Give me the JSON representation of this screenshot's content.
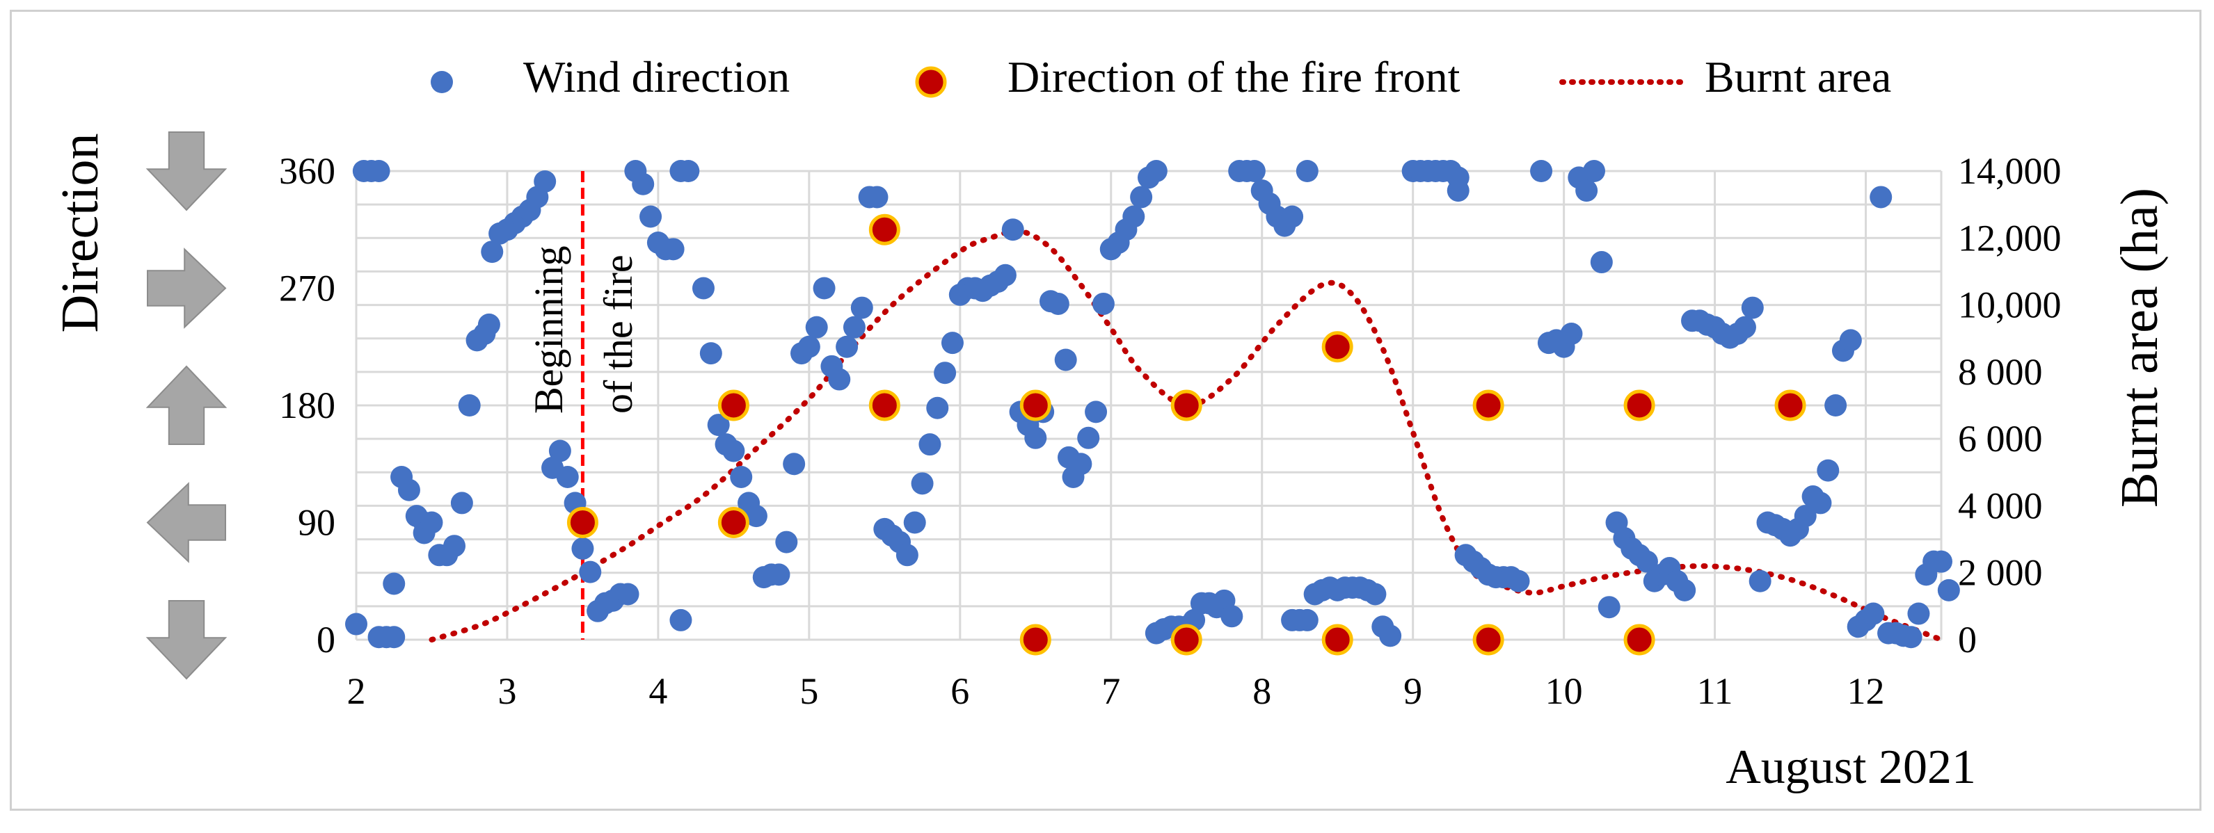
{
  "chart_data": {
    "type": "scatter",
    "title": "",
    "xlabel": "August 2021",
    "ylabel_left": "Direction",
    "ylabel_right": "Burnt area (ha)",
    "xlim": [
      2,
      12.5
    ],
    "ylim_left": [
      0,
      360
    ],
    "ylim_right": [
      0,
      14000
    ],
    "x_ticks": [
      "2",
      "3",
      "4",
      "5",
      "6",
      "7",
      "8",
      "9",
      "10",
      "11",
      "12"
    ],
    "y_ticks_left": [
      "0",
      "90",
      "180",
      "270",
      "360"
    ],
    "y_ticks_right": [
      "0",
      "2 000",
      "4 000",
      "6 000",
      "8 000",
      "10,000",
      "12,000",
      "14,000"
    ],
    "grid": true,
    "legend_position": "top",
    "legend": [
      "Wind direction",
      "Direction of the fire front",
      "Burnt area"
    ],
    "colors": {
      "wind": "#4472C4",
      "fire_fill": "#C00000",
      "fire_edge": "#FFC000",
      "burnt": "#C00000",
      "start_line": "#FF0000",
      "arrow": "#A6A6A6",
      "grid": "#D9D9D9"
    },
    "annotation": [
      "Beginning",
      "of the fire"
    ],
    "annotation_x": 3.5,
    "direction_icons": [
      "arrow-down",
      "arrow-right",
      "arrow-up",
      "arrow-left",
      "arrow-down"
    ],
    "series": [
      {
        "name": "Wind direction",
        "kind": "scatter",
        "points": [
          [
            2.0,
            12
          ],
          [
            2.05,
            360
          ],
          [
            2.1,
            360
          ],
          [
            2.15,
            360
          ],
          [
            2.15,
            2
          ],
          [
            2.2,
            2
          ],
          [
            2.25,
            2
          ],
          [
            2.25,
            43
          ],
          [
            2.3,
            125
          ],
          [
            2.35,
            115
          ],
          [
            2.4,
            95
          ],
          [
            2.45,
            90
          ],
          [
            2.45,
            82
          ],
          [
            2.5,
            90
          ],
          [
            2.55,
            65
          ],
          [
            2.6,
            65
          ],
          [
            2.65,
            72
          ],
          [
            2.7,
            105
          ],
          [
            2.75,
            180
          ],
          [
            2.8,
            230
          ],
          [
            2.85,
            235
          ],
          [
            2.88,
            242
          ],
          [
            2.9,
            298
          ],
          [
            2.95,
            312
          ],
          [
            3.0,
            315
          ],
          [
            3.05,
            320
          ],
          [
            3.1,
            325
          ],
          [
            3.15,
            330
          ],
          [
            3.2,
            340
          ],
          [
            3.25,
            352
          ],
          [
            3.3,
            132
          ],
          [
            3.35,
            145
          ],
          [
            3.4,
            125
          ],
          [
            3.45,
            105
          ],
          [
            3.5,
            70
          ],
          [
            3.55,
            52
          ],
          [
            3.6,
            22
          ],
          [
            3.65,
            28
          ],
          [
            3.7,
            30
          ],
          [
            3.75,
            35
          ],
          [
            3.8,
            35
          ],
          [
            3.85,
            360
          ],
          [
            3.9,
            350
          ],
          [
            3.95,
            325
          ],
          [
            4.0,
            305
          ],
          [
            4.05,
            300
          ],
          [
            4.1,
            300
          ],
          [
            4.15,
            360
          ],
          [
            4.2,
            360
          ],
          [
            4.15,
            15
          ],
          [
            4.3,
            270
          ],
          [
            4.35,
            220
          ],
          [
            4.4,
            165
          ],
          [
            4.45,
            150
          ],
          [
            4.5,
            145
          ],
          [
            4.55,
            125
          ],
          [
            4.6,
            105
          ],
          [
            4.65,
            95
          ],
          [
            4.7,
            48
          ],
          [
            4.75,
            50
          ],
          [
            4.8,
            50
          ],
          [
            4.85,
            75
          ],
          [
            4.9,
            135
          ],
          [
            4.95,
            220
          ],
          [
            5.0,
            225
          ],
          [
            5.05,
            240
          ],
          [
            5.1,
            270
          ],
          [
            5.15,
            210
          ],
          [
            5.2,
            200
          ],
          [
            5.25,
            225
          ],
          [
            5.3,
            240
          ],
          [
            5.35,
            255
          ],
          [
            5.4,
            340
          ],
          [
            5.45,
            340
          ],
          [
            5.5,
            85
          ],
          [
            5.55,
            80
          ],
          [
            5.6,
            75
          ],
          [
            5.65,
            65
          ],
          [
            5.7,
            90
          ],
          [
            5.75,
            120
          ],
          [
            5.8,
            150
          ],
          [
            5.85,
            178
          ],
          [
            5.9,
            205
          ],
          [
            5.95,
            228
          ],
          [
            6.0,
            265
          ],
          [
            6.05,
            270
          ],
          [
            6.1,
            270
          ],
          [
            6.15,
            268
          ],
          [
            6.2,
            272
          ],
          [
            6.25,
            275
          ],
          [
            6.3,
            280
          ],
          [
            6.35,
            315
          ],
          [
            6.4,
            175
          ],
          [
            6.45,
            165
          ],
          [
            6.5,
            155
          ],
          [
            6.55,
            175
          ],
          [
            6.6,
            260
          ],
          [
            6.65,
            258
          ],
          [
            6.7,
            215
          ],
          [
            6.72,
            140
          ],
          [
            6.75,
            125
          ],
          [
            6.8,
            135
          ],
          [
            6.85,
            155
          ],
          [
            6.9,
            175
          ],
          [
            6.95,
            258
          ],
          [
            7.0,
            300
          ],
          [
            7.05,
            305
          ],
          [
            7.1,
            315
          ],
          [
            7.15,
            325
          ],
          [
            7.2,
            340
          ],
          [
            7.25,
            355
          ],
          [
            7.3,
            360
          ],
          [
            7.3,
            5
          ],
          [
            7.35,
            8
          ],
          [
            7.4,
            10
          ],
          [
            7.45,
            10
          ],
          [
            7.5,
            10
          ],
          [
            7.55,
            15
          ],
          [
            7.6,
            28
          ],
          [
            7.65,
            28
          ],
          [
            7.7,
            25
          ],
          [
            7.75,
            30
          ],
          [
            7.8,
            18
          ],
          [
            7.85,
            360
          ],
          [
            7.9,
            360
          ],
          [
            7.95,
            360
          ],
          [
            8.0,
            345
          ],
          [
            8.05,
            335
          ],
          [
            8.1,
            325
          ],
          [
            8.15,
            318
          ],
          [
            8.2,
            325
          ],
          [
            8.3,
            360
          ],
          [
            8.2,
            15
          ],
          [
            8.25,
            15
          ],
          [
            8.3,
            15
          ],
          [
            8.35,
            35
          ],
          [
            8.4,
            38
          ],
          [
            8.45,
            40
          ],
          [
            8.5,
            38
          ],
          [
            8.55,
            40
          ],
          [
            8.6,
            40
          ],
          [
            8.65,
            40
          ],
          [
            8.7,
            38
          ],
          [
            8.75,
            35
          ],
          [
            8.8,
            10
          ],
          [
            8.85,
            3
          ],
          [
            9.0,
            360
          ],
          [
            9.05,
            360
          ],
          [
            9.1,
            360
          ],
          [
            9.15,
            360
          ],
          [
            9.2,
            360
          ],
          [
            9.25,
            360
          ],
          [
            9.3,
            355
          ],
          [
            9.3,
            345
          ],
          [
            9.35,
            65
          ],
          [
            9.4,
            60
          ],
          [
            9.45,
            55
          ],
          [
            9.5,
            50
          ],
          [
            9.55,
            48
          ],
          [
            9.6,
            48
          ],
          [
            9.65,
            48
          ],
          [
            9.7,
            45
          ],
          [
            9.85,
            360
          ],
          [
            9.9,
            228
          ],
          [
            9.95,
            230
          ],
          [
            10.0,
            225
          ],
          [
            10.05,
            235
          ],
          [
            10.1,
            355
          ],
          [
            10.15,
            345
          ],
          [
            10.2,
            360
          ],
          [
            10.25,
            290
          ],
          [
            10.3,
            25
          ],
          [
            10.35,
            90
          ],
          [
            10.4,
            78
          ],
          [
            10.45,
            70
          ],
          [
            10.5,
            65
          ],
          [
            10.55,
            60
          ],
          [
            10.6,
            45
          ],
          [
            10.65,
            50
          ],
          [
            10.7,
            55
          ],
          [
            10.75,
            45
          ],
          [
            10.8,
            38
          ],
          [
            10.85,
            245
          ],
          [
            10.9,
            245
          ],
          [
            10.95,
            242
          ],
          [
            11.0,
            240
          ],
          [
            11.05,
            235
          ],
          [
            11.1,
            232
          ],
          [
            11.15,
            235
          ],
          [
            11.2,
            240
          ],
          [
            11.25,
            255
          ],
          [
            11.3,
            45
          ],
          [
            11.35,
            90
          ],
          [
            11.4,
            88
          ],
          [
            11.45,
            85
          ],
          [
            11.5,
            80
          ],
          [
            11.55,
            85
          ],
          [
            11.6,
            95
          ],
          [
            11.65,
            110
          ],
          [
            11.7,
            105
          ],
          [
            11.75,
            130
          ],
          [
            11.8,
            180
          ],
          [
            11.85,
            222
          ],
          [
            11.9,
            230
          ],
          [
            11.95,
            10
          ],
          [
            12.0,
            15
          ],
          [
            12.05,
            20
          ],
          [
            12.1,
            340
          ],
          [
            12.15,
            5
          ],
          [
            12.2,
            5
          ],
          [
            12.25,
            3
          ],
          [
            12.3,
            2
          ],
          [
            12.35,
            20
          ],
          [
            12.4,
            50
          ],
          [
            12.45,
            60
          ],
          [
            12.5,
            60
          ],
          [
            12.55,
            38
          ]
        ]
      },
      {
        "name": "Direction of the fire front",
        "kind": "scatter",
        "points": [
          [
            3.5,
            90
          ],
          [
            4.5,
            180
          ],
          [
            4.5,
            90
          ],
          [
            5.5,
            315
          ],
          [
            5.5,
            180
          ],
          [
            6.5,
            180
          ],
          [
            6.5,
            0
          ],
          [
            7.5,
            180
          ],
          [
            7.5,
            0
          ],
          [
            8.5,
            225
          ],
          [
            8.5,
            0
          ],
          [
            9.5,
            180
          ],
          [
            9.5,
            0
          ],
          [
            10.5,
            180
          ],
          [
            10.5,
            0
          ],
          [
            11.5,
            180
          ]
        ]
      },
      {
        "name": "Burnt area",
        "kind": "line",
        "axis": "right",
        "points": [
          [
            2.5,
            0
          ],
          [
            2.8,
            400
          ],
          [
            3.0,
            800
          ],
          [
            3.3,
            1500
          ],
          [
            3.5,
            2000
          ],
          [
            3.8,
            2800
          ],
          [
            4.0,
            3400
          ],
          [
            4.3,
            4300
          ],
          [
            4.6,
            5500
          ],
          [
            5.0,
            7200
          ],
          [
            5.3,
            8800
          ],
          [
            5.6,
            10200
          ],
          [
            6.0,
            11600
          ],
          [
            6.2,
            12000
          ],
          [
            6.4,
            12200
          ],
          [
            6.6,
            11700
          ],
          [
            6.8,
            10600
          ],
          [
            7.0,
            9300
          ],
          [
            7.2,
            8000
          ],
          [
            7.5,
            7000
          ],
          [
            7.8,
            7800
          ],
          [
            8.1,
            9400
          ],
          [
            8.4,
            10600
          ],
          [
            8.6,
            10300
          ],
          [
            8.8,
            8700
          ],
          [
            9.0,
            6200
          ],
          [
            9.2,
            3600
          ],
          [
            9.4,
            2000
          ],
          [
            9.6,
            1600
          ],
          [
            9.8,
            1400
          ],
          [
            10.0,
            1600
          ],
          [
            10.3,
            1900
          ],
          [
            10.6,
            2100
          ],
          [
            10.9,
            2200
          ],
          [
            11.2,
            2100
          ],
          [
            11.5,
            1800
          ],
          [
            11.8,
            1300
          ],
          [
            12.1,
            700
          ],
          [
            12.5,
            0
          ]
        ]
      }
    ]
  }
}
